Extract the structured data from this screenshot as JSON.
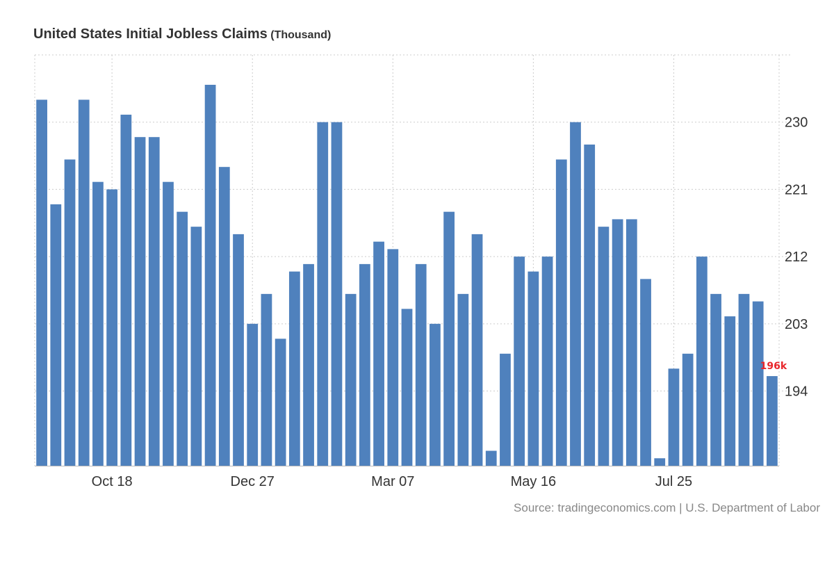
{
  "title": "United States Initial Jobless Claims",
  "unit": "(Thousand)",
  "source": "Source: tradingeconomics.com | U.S. Department of Labor",
  "colors": {
    "bar": "#4f81bd",
    "last_label": "#e8262b",
    "grid": "#cccccc",
    "axis_text": "#333333"
  },
  "chart_data": {
    "type": "bar",
    "title": "United States Initial Jobless Claims (Thousand)",
    "values": [
      233,
      219,
      225,
      233,
      222,
      221,
      231,
      228,
      228,
      222,
      218,
      216,
      235,
      224,
      215,
      203,
      207,
      201,
      210,
      211,
      230,
      230,
      207,
      211,
      214,
      213,
      205,
      211,
      203,
      218,
      207,
      215,
      186,
      199,
      212,
      210,
      212,
      225,
      230,
      227,
      216,
      217,
      217,
      209,
      185,
      197,
      199,
      212,
      207,
      204,
      207,
      206,
      196
    ],
    "x_ticks": [
      {
        "index": 5,
        "label": "Oct 18"
      },
      {
        "index": 15,
        "label": "Dec 27"
      },
      {
        "index": 25,
        "label": "Mar 07"
      },
      {
        "index": 35,
        "label": "May 16"
      },
      {
        "index": 45,
        "label": "Jul 25"
      }
    ],
    "y_ticks": [
      194,
      203,
      212,
      221,
      230
    ],
    "ylim": [
      184,
      239
    ],
    "grid": true,
    "last_value_label": "196k",
    "xlabel": "",
    "ylabel": ""
  }
}
